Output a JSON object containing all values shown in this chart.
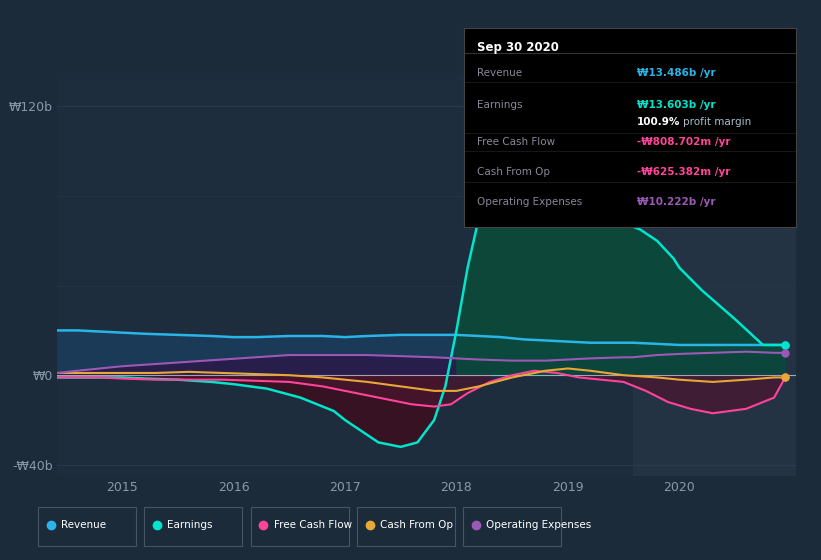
{
  "bg_color": "#1c2b3a",
  "plot_bg_color": "#1e2d3d",
  "highlight_bg_color": "#243344",
  "grid_color": "#2a3f55",
  "zero_line_color": "#ffffff",
  "title_text": "Sep 30 2020",
  "ylim": [
    -45,
    135
  ],
  "yticks": [
    -40,
    0,
    120
  ],
  "ytick_labels": [
    "-₩40b",
    "₩0",
    "₩120b"
  ],
  "xlim_start": 2014.42,
  "xlim_end": 2021.05,
  "xticks": [
    2015,
    2016,
    2017,
    2018,
    2019,
    2020
  ],
  "highlight_start": 2019.58,
  "highlight_end": 2021.05,
  "series": {
    "Revenue": {
      "color": "#29b5e8",
      "fill_color": "#1a3a5a",
      "x": [
        2014.42,
        2014.6,
        2014.8,
        2015.0,
        2015.2,
        2015.5,
        2015.8,
        2016.0,
        2016.2,
        2016.5,
        2016.8,
        2017.0,
        2017.2,
        2017.5,
        2017.8,
        2018.0,
        2018.2,
        2018.4,
        2018.6,
        2018.8,
        2019.0,
        2019.2,
        2019.4,
        2019.58,
        2019.8,
        2020.0,
        2020.2,
        2020.5,
        2020.75,
        2020.95
      ],
      "y": [
        20,
        20,
        19.5,
        19,
        18.5,
        18,
        17.5,
        17,
        17,
        17.5,
        17.5,
        17,
        17.5,
        18,
        18,
        18,
        17.5,
        17,
        16,
        15.5,
        15,
        14.5,
        14.5,
        14.5,
        14,
        13.5,
        13.5,
        13.5,
        13.5,
        13.5
      ]
    },
    "Earnings": {
      "color": "#00e5cc",
      "fill_color": "#006655",
      "fill_neg_color": "#4a1a2a",
      "x": [
        2014.42,
        2014.6,
        2014.8,
        2015.0,
        2015.2,
        2015.5,
        2015.8,
        2016.0,
        2016.3,
        2016.6,
        2016.9,
        2017.0,
        2017.15,
        2017.3,
        2017.5,
        2017.65,
        2017.8,
        2017.9,
        2018.0,
        2018.1,
        2018.2,
        2018.35,
        2018.5,
        2018.65,
        2018.75,
        2018.85,
        2019.0,
        2019.15,
        2019.3,
        2019.5,
        2019.65,
        2019.8,
        2019.95,
        2020.0,
        2020.2,
        2020.5,
        2020.75,
        2020.95
      ],
      "y": [
        -1,
        -1,
        -1,
        -1,
        -1.5,
        -2,
        -3,
        -4,
        -6,
        -10,
        -16,
        -20,
        -25,
        -30,
        -32,
        -30,
        -20,
        -5,
        20,
        48,
        70,
        88,
        100,
        115,
        120,
        115,
        90,
        78,
        72,
        68,
        65,
        60,
        52,
        48,
        38,
        25,
        13.5,
        13.5
      ]
    },
    "Free Cash Flow": {
      "color": "#ff4499",
      "x": [
        2014.42,
        2014.6,
        2014.8,
        2015.0,
        2015.3,
        2015.6,
        2015.9,
        2016.2,
        2016.5,
        2016.8,
        2017.0,
        2017.2,
        2017.4,
        2017.6,
        2017.8,
        2017.95,
        2018.1,
        2018.3,
        2018.5,
        2018.7,
        2018.9,
        2019.1,
        2019.3,
        2019.5,
        2019.7,
        2019.9,
        2020.1,
        2020.3,
        2020.6,
        2020.85,
        2020.95
      ],
      "y": [
        -1,
        -1,
        -1,
        -1.5,
        -2,
        -2,
        -2,
        -2.5,
        -3,
        -5,
        -7,
        -9,
        -11,
        -13,
        -14,
        -13,
        -8,
        -3,
        0,
        2,
        1,
        -1,
        -2,
        -3,
        -7,
        -12,
        -15,
        -17,
        -15,
        -10,
        -1
      ]
    },
    "Cash From Op": {
      "color": "#e8a838",
      "x": [
        2014.42,
        2014.6,
        2014.8,
        2015.0,
        2015.3,
        2015.6,
        2015.9,
        2016.2,
        2016.5,
        2016.8,
        2017.0,
        2017.2,
        2017.5,
        2017.8,
        2018.0,
        2018.2,
        2018.5,
        2018.8,
        2019.0,
        2019.2,
        2019.5,
        2019.8,
        2020.0,
        2020.3,
        2020.6,
        2020.85,
        2020.95
      ],
      "y": [
        1,
        1,
        1,
        1,
        1,
        1.5,
        1,
        0.5,
        0,
        -1,
        -2,
        -3,
        -5,
        -7,
        -7,
        -5,
        -1,
        2,
        3,
        2,
        0,
        -1,
        -2,
        -3,
        -2,
        -1,
        -1
      ]
    },
    "Operating Expenses": {
      "color": "#9b59b6",
      "x": [
        2014.42,
        2014.6,
        2014.8,
        2015.0,
        2015.3,
        2015.6,
        2015.9,
        2016.2,
        2016.5,
        2016.8,
        2017.0,
        2017.2,
        2017.5,
        2017.8,
        2018.0,
        2018.2,
        2018.5,
        2018.8,
        2019.0,
        2019.2,
        2019.5,
        2019.58,
        2019.8,
        2020.0,
        2020.3,
        2020.6,
        2020.85,
        2020.95
      ],
      "y": [
        1,
        2,
        3,
        4,
        5,
        6,
        7,
        8,
        9,
        9,
        9,
        9,
        8.5,
        8,
        7.5,
        7,
        6.5,
        6.5,
        7,
        7.5,
        8,
        8,
        9,
        9.5,
        10,
        10.5,
        10,
        10
      ]
    }
  },
  "tooltip": {
    "title": "Sep 30 2020",
    "rows": [
      {
        "label": "Revenue",
        "value": "₩13.486b /yr",
        "color": "#29b5e8",
        "separator": true
      },
      {
        "label": "Earnings",
        "value": "₩13.603b /yr",
        "color": "#00e5cc",
        "extra": "100.9% profit margin",
        "separator": true
      },
      {
        "label": "Free Cash Flow",
        "value": "-₩808.702m /yr",
        "color": "#ff4499",
        "separator": true
      },
      {
        "label": "Cash From Op",
        "value": "-₩625.382m /yr",
        "color": "#ff4499",
        "separator": true
      },
      {
        "label": "Operating Expenses",
        "value": "₩10.222b /yr",
        "color": "#9b59b6",
        "separator": false
      }
    ]
  },
  "legend": [
    {
      "label": "Revenue",
      "color": "#29b5e8"
    },
    {
      "label": "Earnings",
      "color": "#00e5cc"
    },
    {
      "label": "Free Cash Flow",
      "color": "#ff4499"
    },
    {
      "label": "Cash From Op",
      "color": "#e8a838"
    },
    {
      "label": "Operating Expenses",
      "color": "#9b59b6"
    }
  ]
}
